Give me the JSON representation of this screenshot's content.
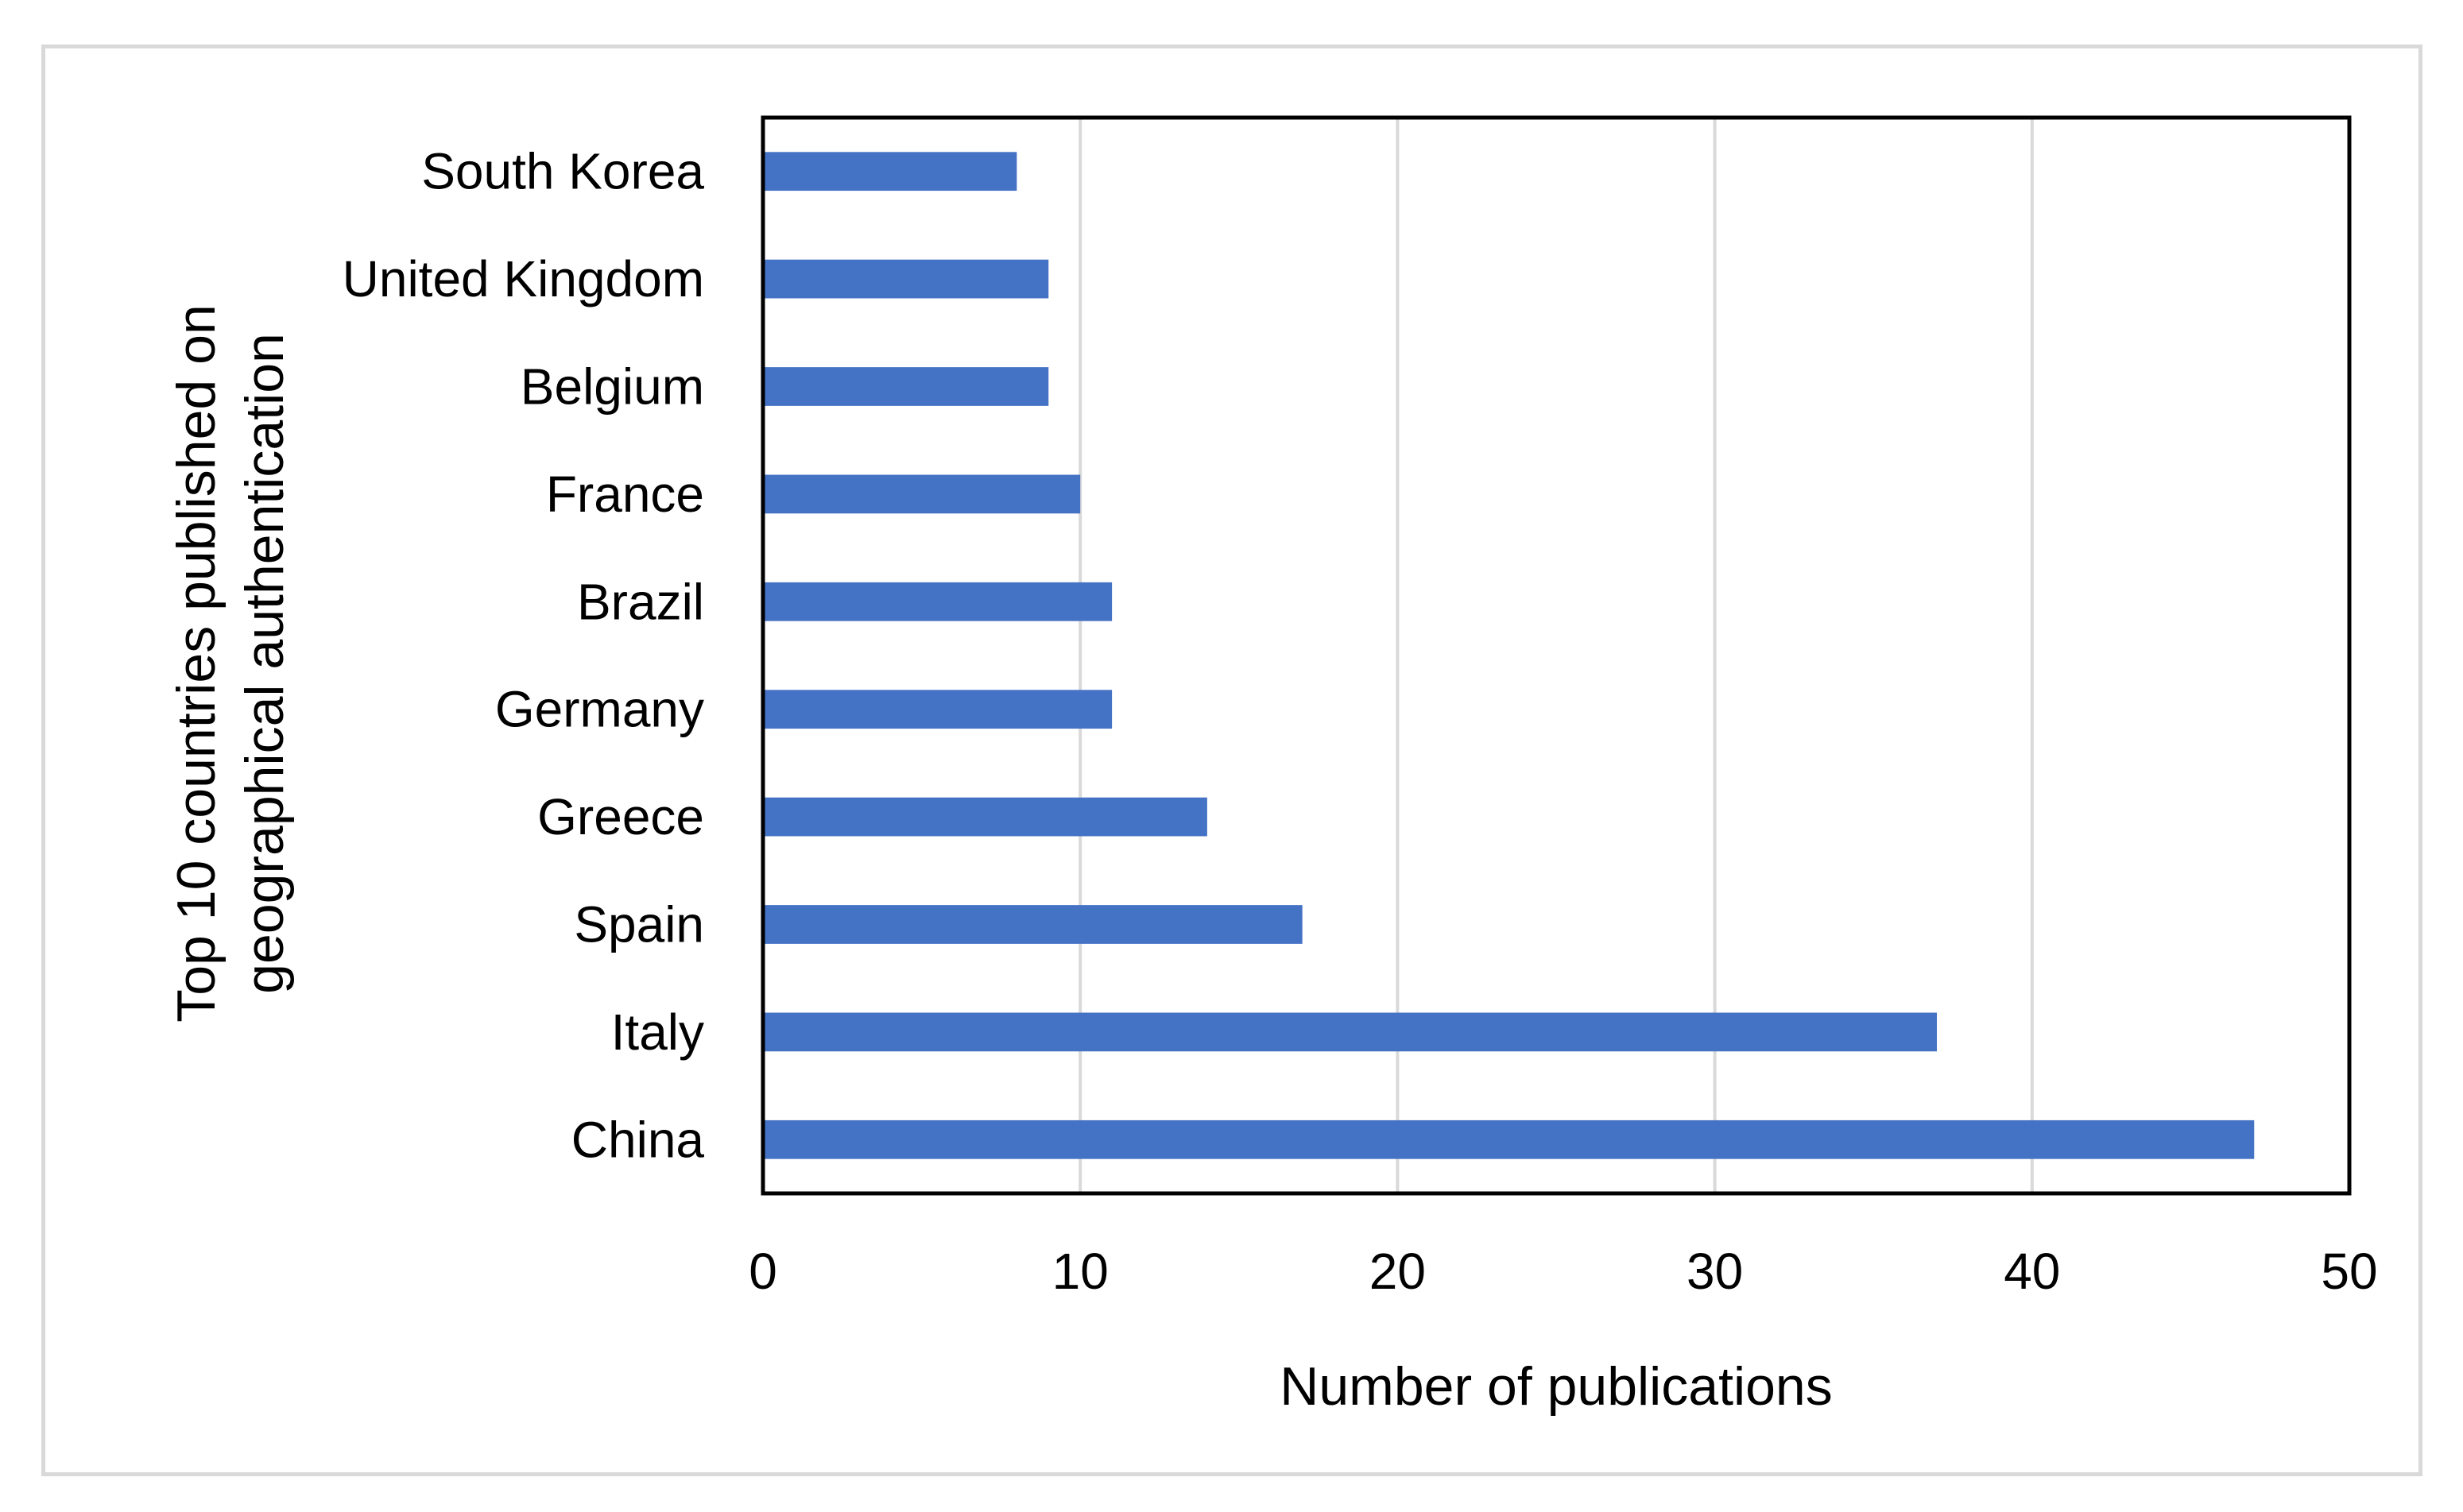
{
  "chart_data": {
    "type": "bar",
    "orientation": "horizontal",
    "categories": [
      "China",
      "Italy",
      "Spain",
      "Greece",
      "Germany",
      "Brazil",
      "France",
      "Belgium",
      "United Kingdom",
      "South Korea"
    ],
    "values": [
      47,
      37,
      17,
      14,
      11,
      11,
      10,
      9,
      9,
      8
    ],
    "xlabel": "Number of publications",
    "ylabel": "Top 10 countries published on geographical authentication",
    "ylabel_lines": [
      "Top 10 countries published on",
      "geographical authentication"
    ],
    "xlim": [
      0,
      50
    ],
    "xticks": [
      0,
      10,
      20,
      30,
      40,
      50
    ],
    "grid": "vertical",
    "legend": "none",
    "bar_color": "#4472c4",
    "grid_color": "#d9d9d9",
    "frame_color": "#000000"
  }
}
